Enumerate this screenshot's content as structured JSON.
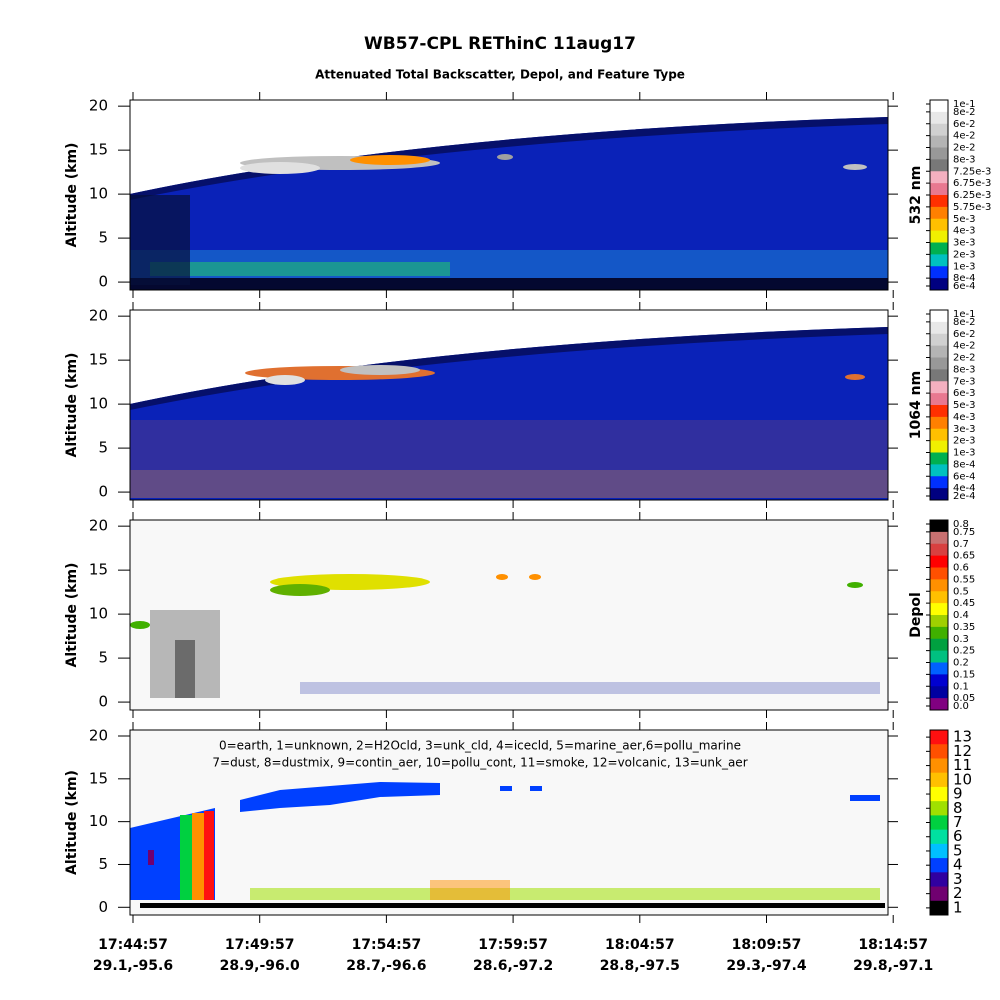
{
  "title": "WB57-CPL REThinC 11aug17",
  "subtitle": "Attenuated Total Backscatter, Depol, and Feature Type",
  "x_axis": {
    "times": [
      "17:44:57",
      "17:49:57",
      "17:54:57",
      "17:59:57",
      "18:04:57",
      "18:09:57",
      "18:14:57"
    ],
    "positions": [
      "29.1,-95.6",
      "28.9,-96.0",
      "28.7,-96.6",
      "28.6,-97.2",
      "28.8,-97.5",
      "29.3,-97.4",
      "29.8,-97.1"
    ]
  },
  "chart_data": [
    {
      "type": "heatmap",
      "y_label": "Altitude (km)",
      "ylim": [
        -0.9,
        20.7
      ],
      "yticks": [
        0,
        5,
        10,
        15,
        20
      ],
      "colorbar": {
        "label": "532 nm",
        "ticks": [
          {
            "value": 0.1,
            "label": "1e-1"
          },
          {
            "value": 0.08,
            "label": "8e-2"
          },
          {
            "value": 0.06,
            "label": "6e-2"
          },
          {
            "value": 0.04,
            "label": "4e-2"
          },
          {
            "value": 0.02,
            "label": "2e-2"
          },
          {
            "value": 0.008,
            "label": "8e-3"
          },
          {
            "value": 0.00725,
            "label": "7.25e-3"
          },
          {
            "value": 0.00675,
            "label": "6.75e-3"
          },
          {
            "value": 0.00625,
            "label": "6.25e-3"
          },
          {
            "value": 0.00575,
            "label": "5.75e-3"
          },
          {
            "value": 0.005,
            "label": "5e-3"
          },
          {
            "value": 0.004,
            "label": "4e-3"
          },
          {
            "value": 0.003,
            "label": "3e-3"
          },
          {
            "value": 0.002,
            "label": "2e-3"
          },
          {
            "value": 0.001,
            "label": "1e-3"
          },
          {
            "value": 0.0008,
            "label": "8e-4"
          },
          {
            "value": 0.0006,
            "label": "6e-4"
          }
        ],
        "colors": [
          "#ffffff",
          "#e8e8e8",
          "#d0d0d0",
          "#b4b4b4",
          "#989898",
          "#787878",
          "#f4b0c0",
          "#e87890",
          "#ff3000",
          "#ff8000",
          "#ffc000",
          "#f0f000",
          "#00b050",
          "#00c0c0",
          "#0030ff",
          "#000080"
        ]
      }
    },
    {
      "type": "heatmap",
      "y_label": "Altitude (km)",
      "ylim": [
        -0.9,
        20.7
      ],
      "yticks": [
        0,
        5,
        10,
        15,
        20
      ],
      "colorbar": {
        "label": "1064 nm",
        "ticks": [
          {
            "value": 0.1,
            "label": "1e-1"
          },
          {
            "value": 0.08,
            "label": "8e-2"
          },
          {
            "value": 0.06,
            "label": "6e-2"
          },
          {
            "value": 0.04,
            "label": "4e-2"
          },
          {
            "value": 0.02,
            "label": "2e-2"
          },
          {
            "value": 0.008,
            "label": "8e-3"
          },
          {
            "value": 0.007,
            "label": "7e-3"
          },
          {
            "value": 0.006,
            "label": "6e-3"
          },
          {
            "value": 0.005,
            "label": "5e-3"
          },
          {
            "value": 0.004,
            "label": "4e-3"
          },
          {
            "value": 0.003,
            "label": "3e-3"
          },
          {
            "value": 0.002,
            "label": "2e-3"
          },
          {
            "value": 0.001,
            "label": "1e-3"
          },
          {
            "value": 0.0008,
            "label": "8e-4"
          },
          {
            "value": 0.0006,
            "label": "6e-4"
          },
          {
            "value": 0.0004,
            "label": "4e-4"
          },
          {
            "value": 0.0002,
            "label": "2e-4"
          }
        ],
        "colors": [
          "#ffffff",
          "#e8e8e8",
          "#d0d0d0",
          "#b4b4b4",
          "#989898",
          "#787878",
          "#f4b0c0",
          "#e87890",
          "#ff3000",
          "#ff8000",
          "#ffc000",
          "#f0f000",
          "#00b050",
          "#00c0c0",
          "#0030ff",
          "#000080"
        ]
      }
    },
    {
      "type": "heatmap",
      "y_label": "Altitude (km)",
      "ylim": [
        -0.9,
        20.7
      ],
      "yticks": [
        0,
        5,
        10,
        15,
        20
      ],
      "colorbar": {
        "label": "Depol",
        "ticks": [
          0.8,
          0.75,
          0.7,
          0.65,
          0.6,
          0.55,
          0.5,
          0.45,
          0.4,
          0.35,
          0.3,
          0.25,
          0.2,
          0.15,
          0.1,
          0.05,
          {
            "value": 0,
            "label": "0.0"
          }
        ],
        "colors": [
          "#000000",
          "#c87070",
          "#d84040",
          "#ff0000",
          "#ff5000",
          "#ff9000",
          "#ffc000",
          "#ffff00",
          "#a0d000",
          "#40b000",
          "#00a040",
          "#00c080",
          "#0060ff",
          "#0000d0",
          "#0000a0",
          "#800080"
        ]
      }
    },
    {
      "type": "heatmap",
      "y_label": "Altitude (km)",
      "ylim": [
        -0.9,
        20.7
      ],
      "yticks": [
        0,
        5,
        10,
        15,
        20
      ],
      "legend_lines": [
        "0=earth, 1=unknown, 2=H2Ocld, 3=unk_cld, 4=icecld, 5=marine_aer,6=pollu_marine",
        "7=dust, 8=dustmix, 9=contin_aer, 10=pollu_cont, 11=smoke, 12=volcanic, 13=unk_aer"
      ],
      "colorbar": {
        "ticks": [
          13,
          12,
          11,
          10,
          9,
          8,
          7,
          6,
          5,
          4,
          3,
          2,
          1
        ],
        "colors": [
          "#ff1010",
          "#ff5000",
          "#ff9000",
          "#ffc000",
          "#ffff00",
          "#a0e000",
          "#00d040",
          "#00e0a0",
          "#00c0ff",
          "#0040ff",
          "#3000a0",
          "#700070",
          "#000000"
        ]
      }
    }
  ]
}
